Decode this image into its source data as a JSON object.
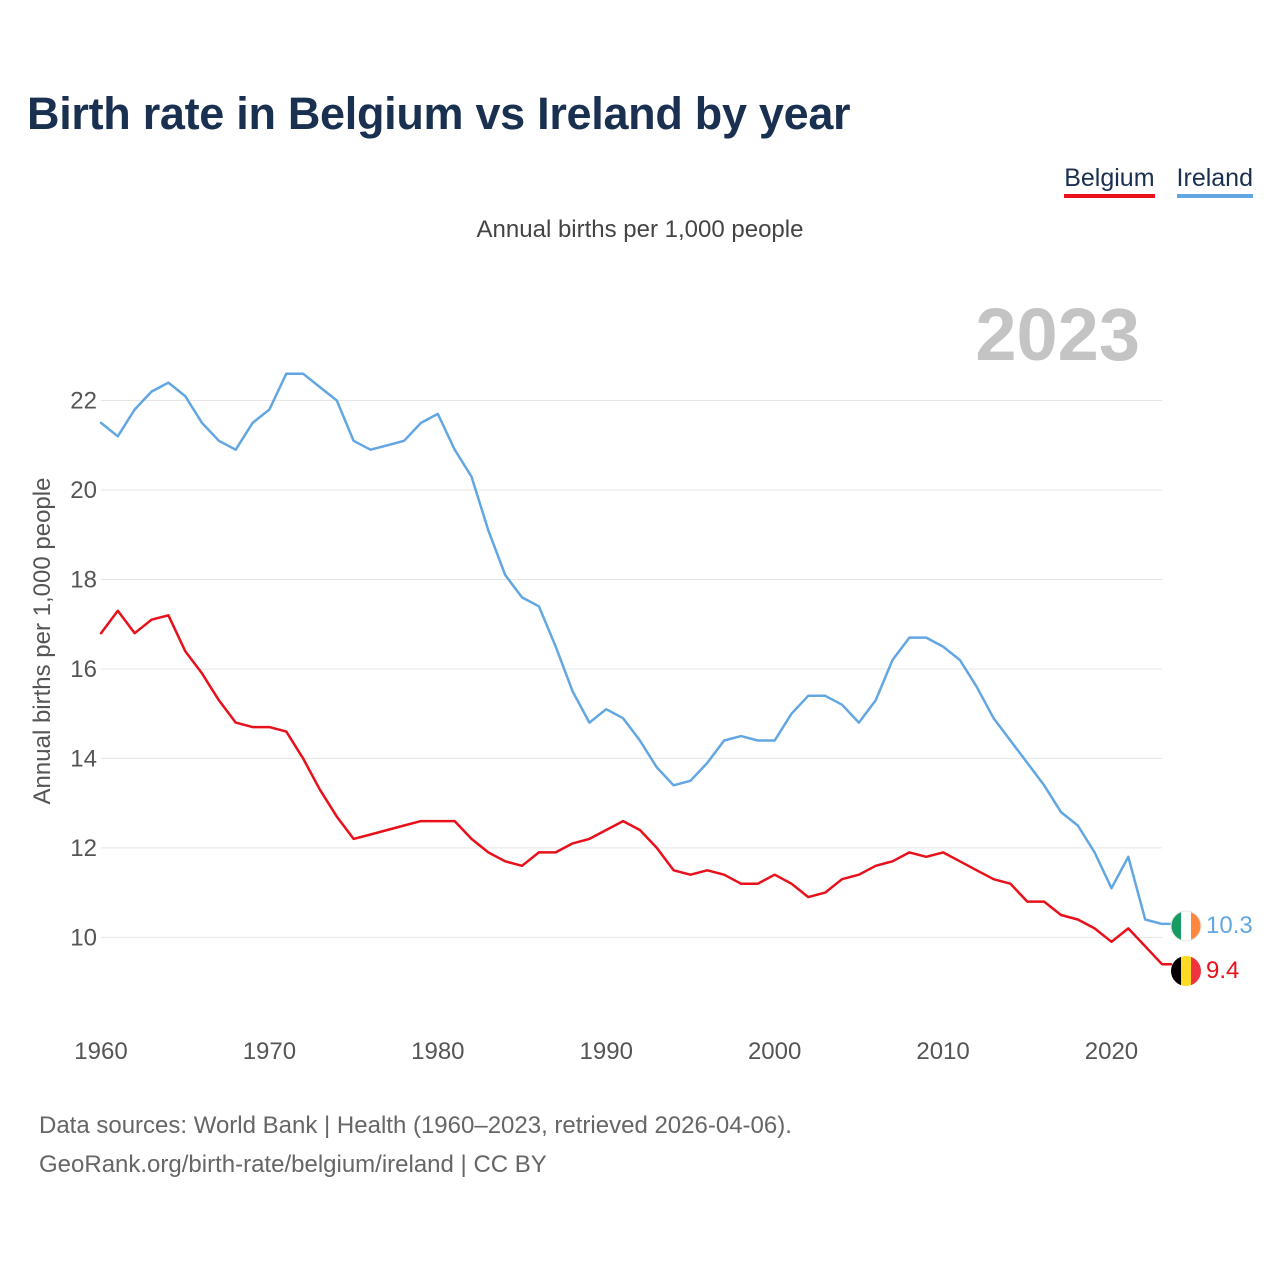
{
  "title": "Birth rate in Belgium vs Ireland by year",
  "legend": {
    "belgium": "Belgium",
    "ireland": "Ireland"
  },
  "source": {
    "line1": "Data sources: World Bank | Health (1960–2023, retrieved 2026-04-06).",
    "line2": "GeoRank.org/birth-rate/belgium/ireland | CC BY"
  },
  "chart_data": {
    "type": "line",
    "title": "Birth rate in Belgium vs Ireland by year",
    "subtitle": "Annual births per 1,000 people",
    "ylabel": "Annual births per 1,000 people",
    "xlabel": "",
    "year_watermark": "2023",
    "ylim": [
      8.6,
      23.8
    ],
    "xlim": [
      1960,
      2023
    ],
    "yticks": [
      10,
      12,
      14,
      16,
      18,
      20,
      22
    ],
    "xticks": [
      1960,
      1970,
      1980,
      1990,
      2000,
      2010,
      2020
    ],
    "grid": true,
    "legend_position": "top-right",
    "x": [
      1960,
      1961,
      1962,
      1963,
      1964,
      1965,
      1966,
      1967,
      1968,
      1969,
      1970,
      1971,
      1972,
      1973,
      1974,
      1975,
      1976,
      1977,
      1978,
      1979,
      1980,
      1981,
      1982,
      1983,
      1984,
      1985,
      1986,
      1987,
      1988,
      1989,
      1990,
      1991,
      1992,
      1993,
      1994,
      1995,
      1996,
      1997,
      1998,
      1999,
      2000,
      2001,
      2002,
      2003,
      2004,
      2005,
      2006,
      2007,
      2008,
      2009,
      2010,
      2011,
      2012,
      2013,
      2014,
      2015,
      2016,
      2017,
      2018,
      2019,
      2020,
      2021,
      2022,
      2023
    ],
    "series": [
      {
        "name": "Belgium",
        "color": "#e8101a",
        "end_label": "9.4",
        "values": [
          16.8,
          17.3,
          16.8,
          17.1,
          17.2,
          16.4,
          15.9,
          15.3,
          14.8,
          14.7,
          14.7,
          14.6,
          14.0,
          13.3,
          12.7,
          12.2,
          12.3,
          12.4,
          12.5,
          12.6,
          12.6,
          12.6,
          12.2,
          11.9,
          11.7,
          11.6,
          11.9,
          11.9,
          12.1,
          12.2,
          12.4,
          12.6,
          12.4,
          12.0,
          11.5,
          11.4,
          11.5,
          11.4,
          11.2,
          11.2,
          11.4,
          11.2,
          10.9,
          11.0,
          11.3,
          11.4,
          11.6,
          11.7,
          11.9,
          11.8,
          11.9,
          11.7,
          11.5,
          11.3,
          11.2,
          10.8,
          10.8,
          10.5,
          10.4,
          10.2,
          9.9,
          10.2,
          9.8,
          9.4
        ]
      },
      {
        "name": "Ireland",
        "color": "#62a6e2",
        "end_label": "10.3",
        "values": [
          21.5,
          21.2,
          21.8,
          22.2,
          22.4,
          22.1,
          21.5,
          21.1,
          20.9,
          21.5,
          21.8,
          22.6,
          22.6,
          22.3,
          22.0,
          21.1,
          20.9,
          21.0,
          21.1,
          21.5,
          21.7,
          20.9,
          20.3,
          19.1,
          18.1,
          17.6,
          17.4,
          16.5,
          15.5,
          14.8,
          15.1,
          14.9,
          14.4,
          13.8,
          13.4,
          13.5,
          13.9,
          14.4,
          14.5,
          14.4,
          14.4,
          15.0,
          15.4,
          15.4,
          15.2,
          14.8,
          15.3,
          16.2,
          16.7,
          16.7,
          16.5,
          16.2,
          15.6,
          14.9,
          14.4,
          13.9,
          13.4,
          12.8,
          12.5,
          11.9,
          11.1,
          11.8,
          10.4,
          10.3
        ]
      }
    ]
  }
}
